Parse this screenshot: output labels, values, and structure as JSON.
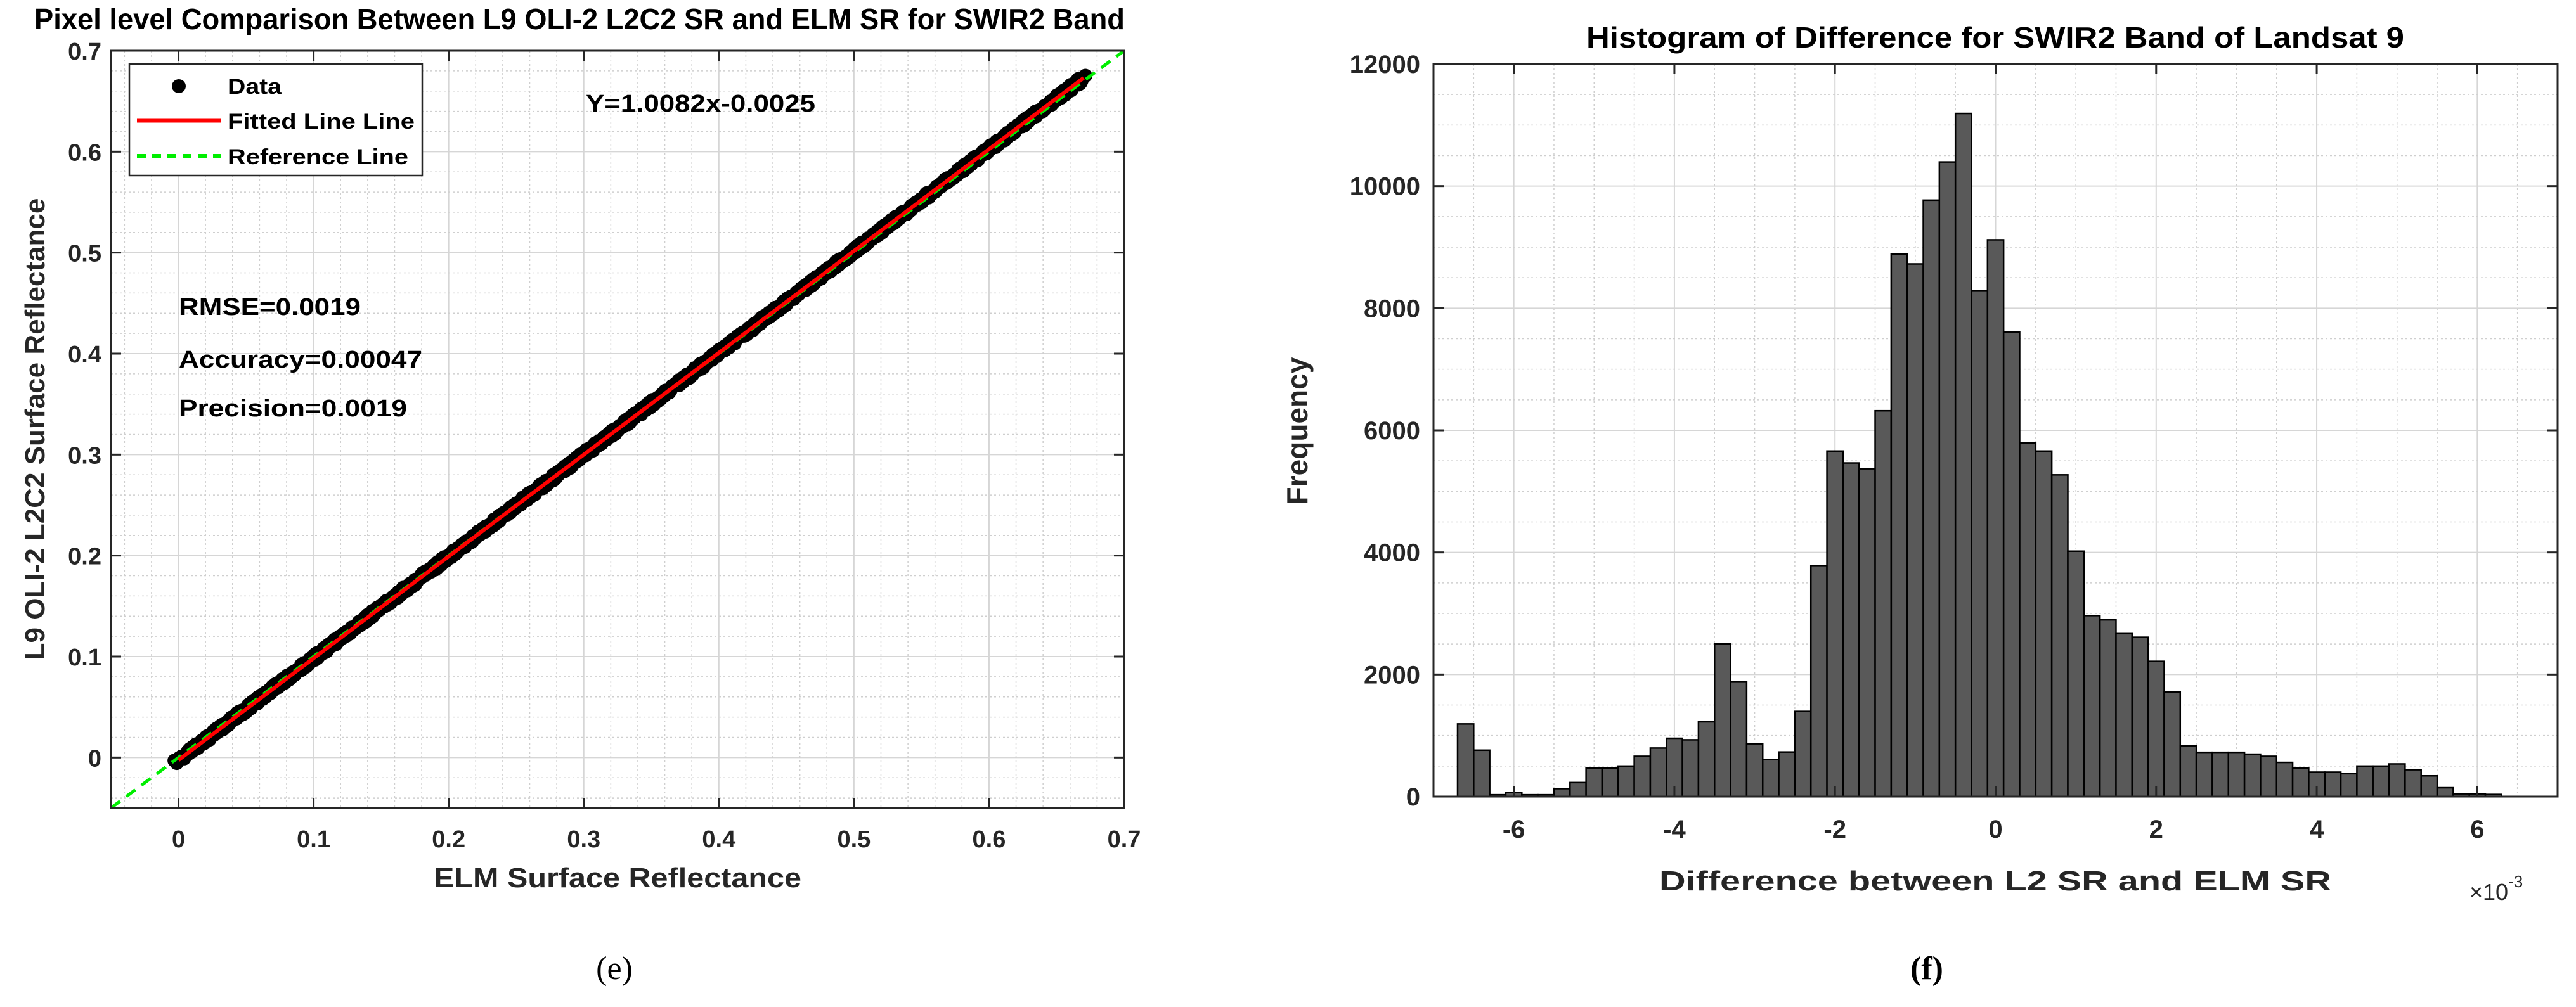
{
  "chart_data": [
    {
      "type": "scatter",
      "title": "Pixel level Comparison Between L9 OLI-2 L2C2 SR and ELM SR for SWIR2 Band",
      "xlabel": "ELM Surface Reflectance",
      "ylabel": "L9 OLI-2 L2C2 Surface Reflectance",
      "xlim": [
        -0.05,
        0.7
      ],
      "ylim": [
        -0.05,
        0.7
      ],
      "xticks": [
        "0",
        "0.1",
        "0.2",
        "0.3",
        "0.4",
        "0.5",
        "0.6",
        "0.7"
      ],
      "yticks": [
        "0",
        "0.1",
        "0.2",
        "0.3",
        "0.4",
        "0.5",
        "0.6",
        "0.7"
      ],
      "grid": true,
      "legend": {
        "placement": "top-left",
        "entries": [
          "Data",
          "Fitted Line Line",
          "Reference Line"
        ]
      },
      "data_x_range": [
        0,
        0.67
      ],
      "fit": {
        "slope": 1.0082,
        "intercept": -0.0025,
        "label": "Y=1.0082x-0.0025"
      },
      "reference": {
        "slope": 1,
        "intercept": 0
      },
      "annotations": [
        "RMSE=0.0019",
        "Accuracy=0.00047",
        "Precision=0.0019"
      ],
      "colors": {
        "data": "#000000",
        "fit": "#ff0000",
        "reference": "#00ee00"
      },
      "panel_label": "(e)"
    },
    {
      "type": "bar",
      "title": "Histogram of Difference for SWIR2 Band of Landsat 9",
      "xlabel": "Difference between L2 SR and ELM SR",
      "ylabel": "Frequency",
      "x_multiplier": "×10",
      "x_exponent": "-3",
      "xlim": [
        -7,
        7
      ],
      "ylim": [
        0,
        12000
      ],
      "xticks": [
        "-6",
        "-4",
        "-2",
        "0",
        "2",
        "4",
        "6"
      ],
      "yticks": [
        "0",
        "2000",
        "4000",
        "6000",
        "8000",
        "10000",
        "12000"
      ],
      "grid": true,
      "bin_start": -6.7,
      "bin_width": 0.2,
      "values": [
        1190,
        760,
        30,
        70,
        30,
        30,
        130,
        230,
        465,
        465,
        500,
        660,
        795,
        955,
        930,
        1225,
        2500,
        1885,
        865,
        607,
        730,
        1395,
        3785,
        5660,
        5465,
        5370,
        6320,
        8885,
        8725,
        9770,
        10395,
        11190,
        8290,
        9120,
        7610,
        5795,
        5660,
        5270,
        4020,
        2965,
        2895,
        2670,
        2610,
        2215,
        1715,
        830,
        725,
        725,
        725,
        695,
        660,
        560,
        465,
        400,
        400,
        375,
        500,
        500,
        535,
        440,
        340,
        145,
        45,
        45,
        35
      ],
      "colors": {
        "bar": "#595959",
        "edge": "#000000"
      },
      "panel_label": "(f)"
    }
  ]
}
